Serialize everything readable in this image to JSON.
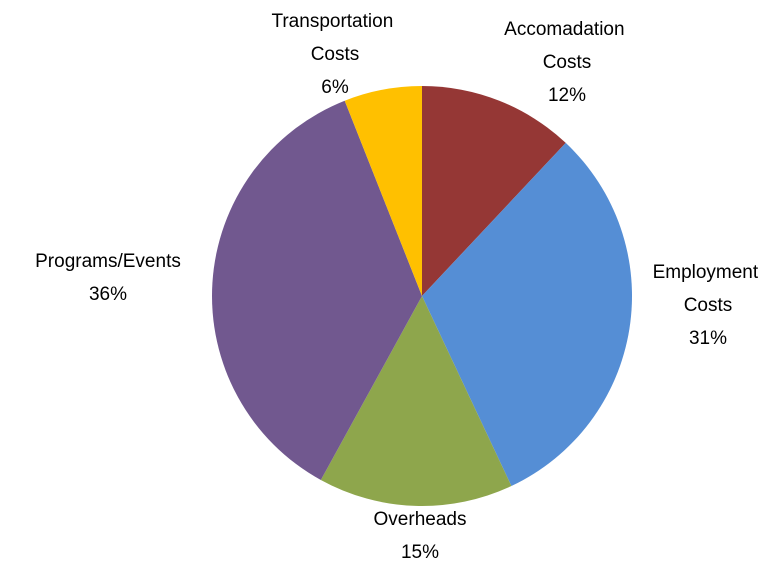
{
  "chart_data": {
    "type": "pie",
    "categories": [
      "Accomadation Costs",
      "Employment Costs",
      "Overheads",
      "Programs/Events",
      "Transportation Costs"
    ],
    "values": [
      12,
      31,
      15,
      36,
      6
    ],
    "value_labels": [
      "12%",
      "31%",
      "15%",
      "36%",
      "6%"
    ],
    "colors": [
      "#953735",
      "#558ed5",
      "#8ea64c",
      "#71588f",
      "#ffc000"
    ]
  }
}
